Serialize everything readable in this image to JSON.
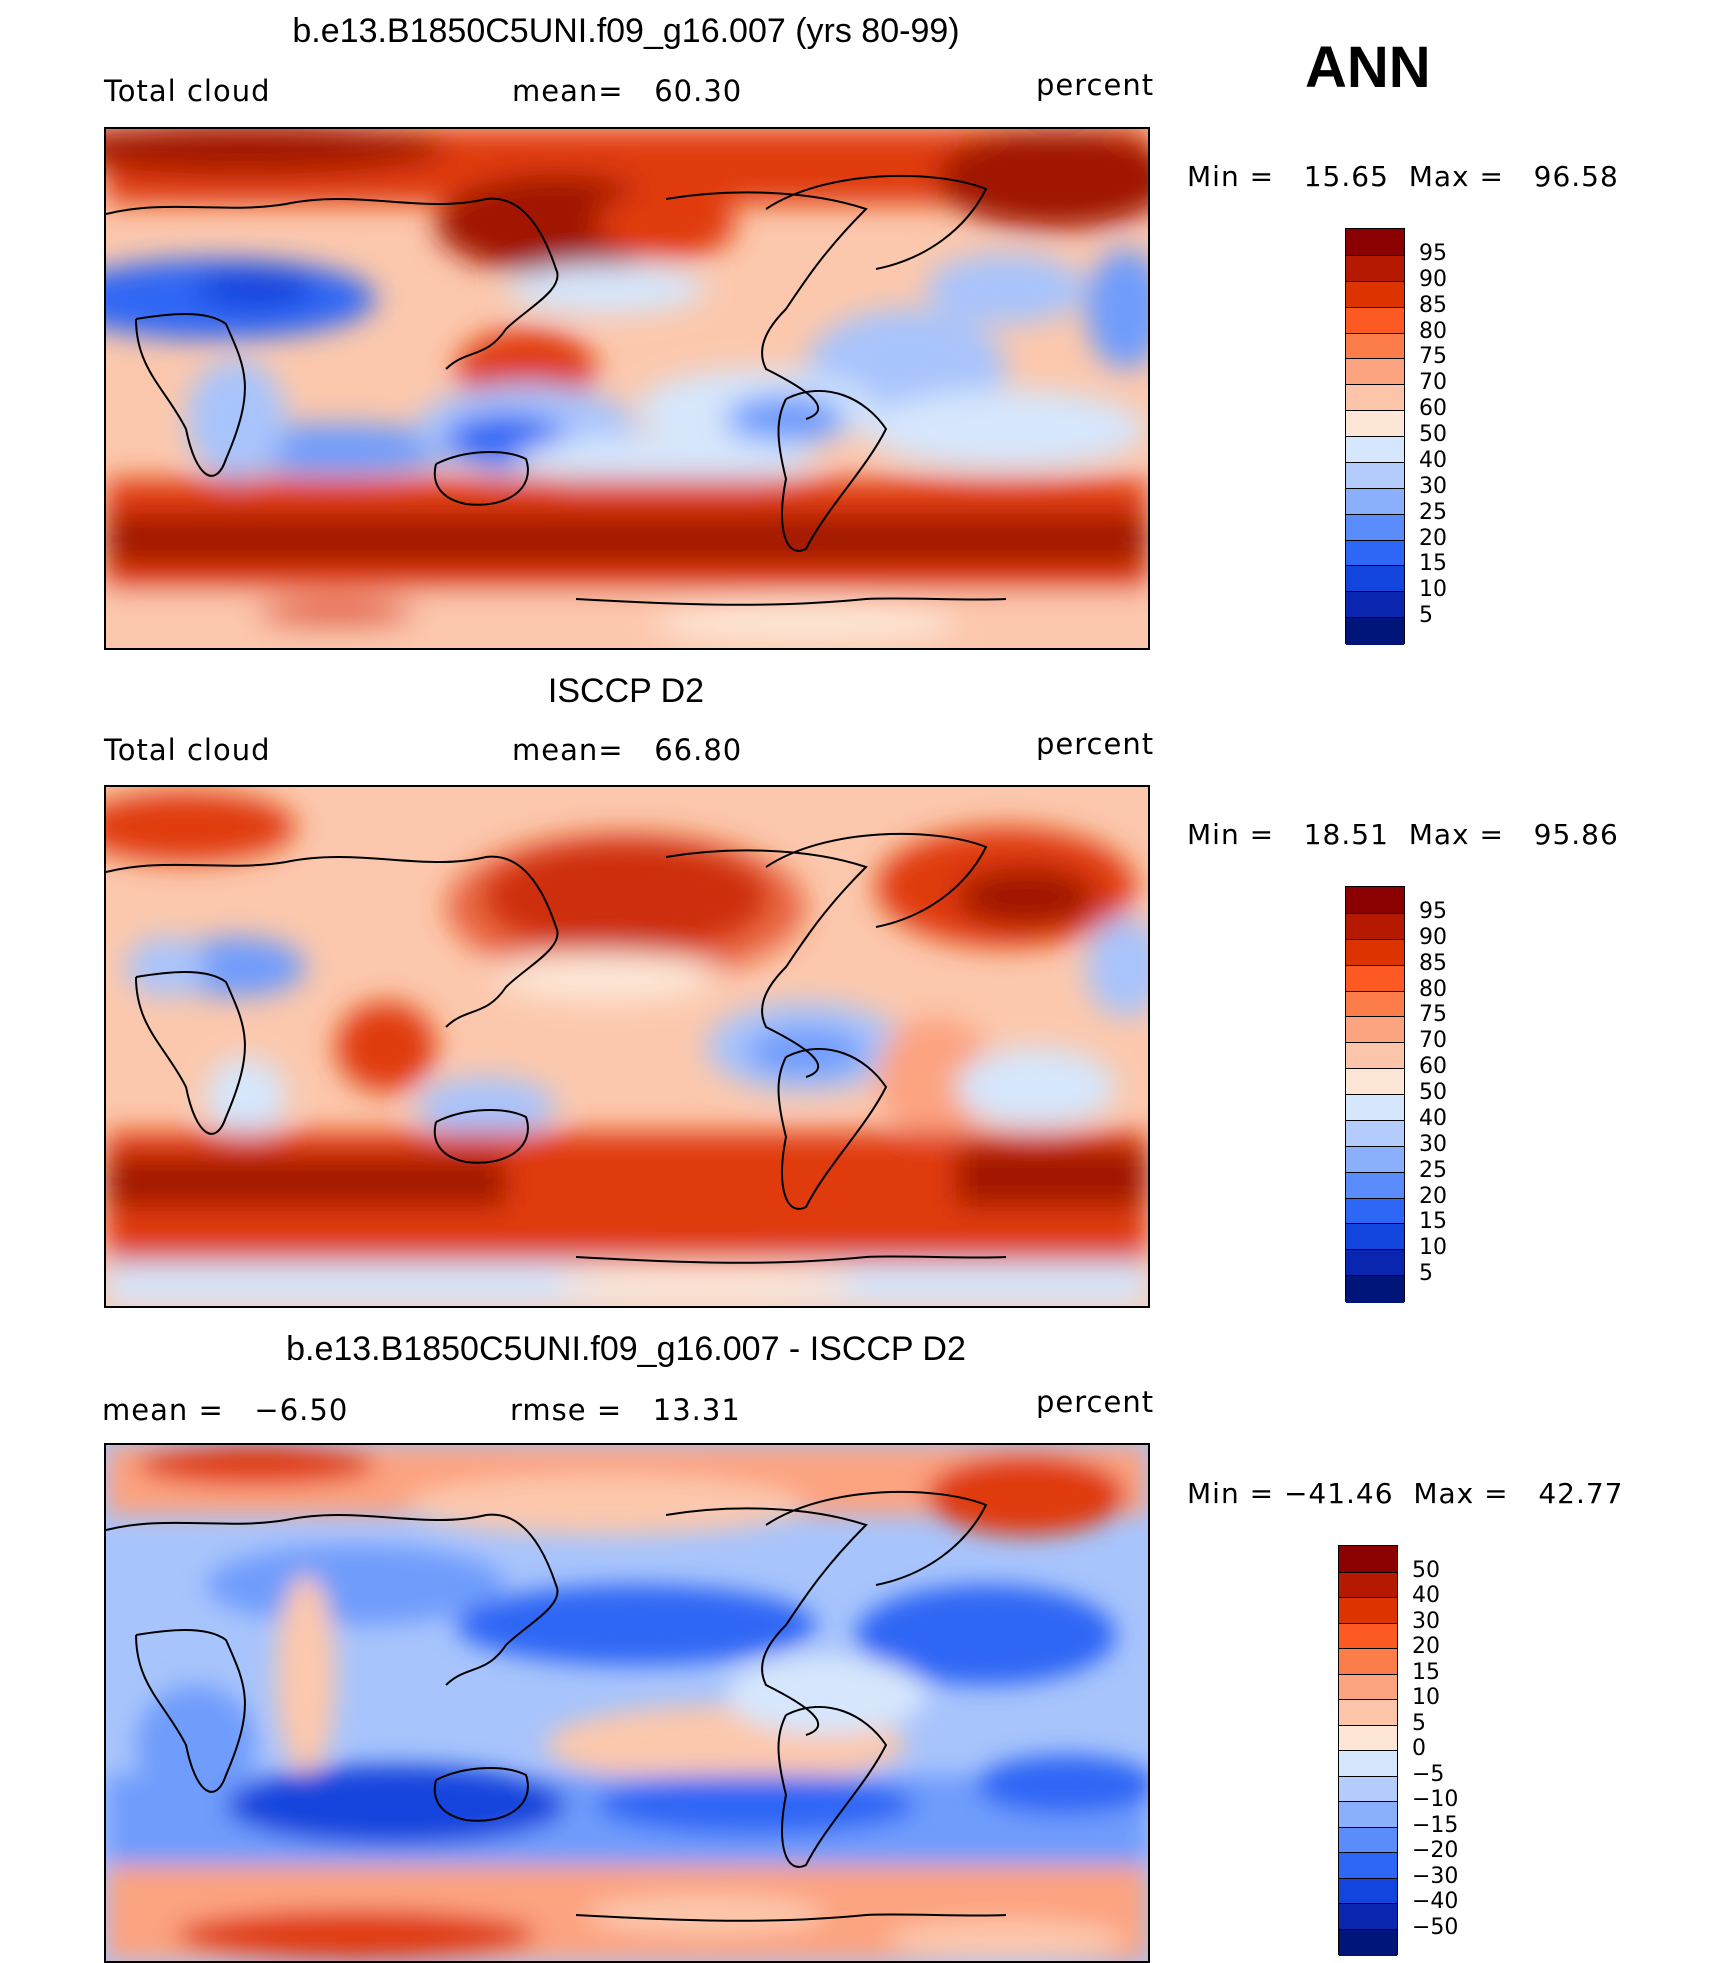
{
  "season": "ANN",
  "panels": [
    {
      "title": "b.e13.B1850C5UNI.f09_g16.007 (yrs 80-99)",
      "left_label": "Total cloud",
      "center_label": "mean=   60.30",
      "units": "percent",
      "minmax": "Min =   15.65  Max =   96.58",
      "kind": "model"
    },
    {
      "title": "ISCCP D2",
      "left_label": "Total cloud",
      "center_label": "mean=   66.80",
      "units": "percent",
      "minmax": "Min =   18.51  Max =   95.86",
      "kind": "obs"
    },
    {
      "title": "b.e13.B1850C5UNI.f09_g16.007 - ISCCP D2",
      "left_label": "mean =   −6.50",
      "center_label": "rmse =   13.31",
      "units": "percent",
      "minmax": "Min = −41.46  Max =   42.77",
      "kind": "diff"
    }
  ],
  "colorbars": {
    "abs": {
      "labels": [
        "95",
        "90",
        "85",
        "80",
        "75",
        "70",
        "60",
        "50",
        "40",
        "30",
        "25",
        "20",
        "15",
        "10",
        "5"
      ],
      "colors": [
        "#8b0000",
        "#b51a00",
        "#dd3300",
        "#fc5a22",
        "#fc7d4a",
        "#fca380",
        "#fcc4a8",
        "#fde6d6",
        "#d6e6fc",
        "#b3ccfc",
        "#8ab0fc",
        "#5a8cfc",
        "#2e66f5",
        "#1245dd",
        "#0a25b0",
        "#00157a"
      ]
    },
    "diff": {
      "labels": [
        "50",
        "40",
        "30",
        "20",
        "15",
        "10",
        "5",
        "0",
        "−5",
        "−10",
        "−15",
        "−20",
        "−30",
        "−40",
        "−50"
      ],
      "colors": [
        "#8b0000",
        "#b51a00",
        "#dd3300",
        "#fc5a22",
        "#fc7d4a",
        "#fca380",
        "#fcc4a8",
        "#fde6d6",
        "#d6e6fc",
        "#b3ccfc",
        "#8ab0fc",
        "#5a8cfc",
        "#2e66f5",
        "#1245dd",
        "#0a25b0",
        "#00157a"
      ]
    }
  },
  "map_colors": {
    "deep_red": "#a01500",
    "red": "#e03a10",
    "orange": "#fc6a35",
    "salmon": "#fca380",
    "peach": "#fcc8ad",
    "cream": "#fde6d6",
    "pale_blue": "#d6e6fc",
    "light_blue": "#a8c4fc",
    "mid_blue": "#6f9cfc",
    "blue": "#2e66f5",
    "dark_blue": "#1245dd"
  }
}
